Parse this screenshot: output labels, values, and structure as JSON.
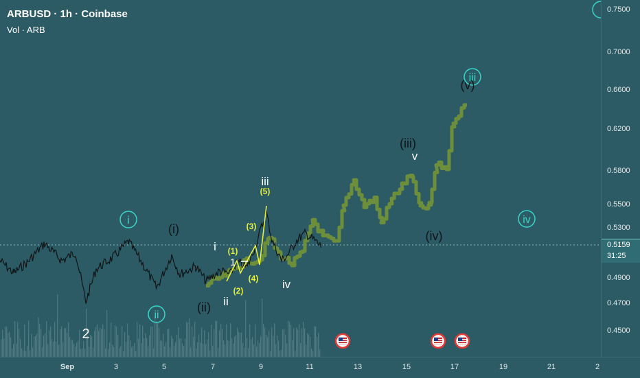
{
  "header": {
    "title": "ARBUSD · 1h · Coinbase",
    "volume_label": "Vol · ARB"
  },
  "price_axis": {
    "labels": [
      "0.7500",
      "0.7000",
      "0.6600",
      "0.6200",
      "0.5800",
      "0.5500",
      "0.5300",
      "0.4900",
      "0.4700",
      "0.4500"
    ],
    "current_price": "0.5159",
    "countdown": "31:25"
  },
  "time_axis": {
    "labels": [
      "Sep",
      "3",
      "5",
      "7",
      "9",
      "11",
      "13",
      "15",
      "17",
      "19",
      "21",
      "2"
    ]
  },
  "wave_labels": {
    "circle_i": "i",
    "circle_ii": "ii",
    "circle_iii": "iii",
    "circle_iv": "iv",
    "paren_i": "(i)",
    "paren_ii": "(ii)",
    "paren_iii": "(iii)",
    "paren_iv": "(iv)",
    "paren_v": "(v)",
    "minor_i": "i",
    "minor_ii": "ii",
    "minor_iii": "iii",
    "minor_iv": "iv",
    "minor_v": "v",
    "num_1": "(1)",
    "num_2": "(2)",
    "num_3": "(3)",
    "num_4": "(4)",
    "num_5": "(5)",
    "one": "1",
    "two": "2"
  },
  "colors": {
    "background": "#2c5b65",
    "candles": "#0f1417",
    "projection": "#6d8f3c",
    "impulse": "#e3f13a",
    "circle_labels": "#38d6c9",
    "volume": "#7a8a8e"
  }
}
